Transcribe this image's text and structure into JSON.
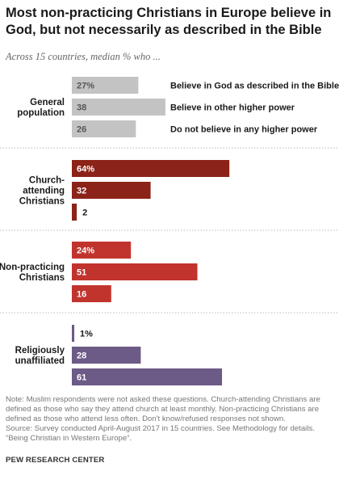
{
  "title": "Most non-practicing Christians in Europe believe in God, but not necessarily as described in the Bible",
  "subtitle": "Across 15 countries, median % who ...",
  "note": "Note: Muslim respondents were not asked these questions. Church-attending Christians are defined as those who say they attend church at least monthly. Non-practicing Christians are defined as those who attend less often. Don't know/refused responses not shown.",
  "source": "Source: Survey conducted April-August 2017 in 15 countries. See Methodology for details. “Being Christian in Western Europe”.",
  "brand": "PEW RESEARCH CENTER",
  "chart_data": {
    "type": "bar",
    "orientation": "horizontal",
    "series_labels": [
      "Believe in God as described in the Bible",
      "Believe in other higher power",
      "Do not believe in any higher power"
    ],
    "groups": [
      {
        "label": "General\npopulation",
        "color": "#c3c3c3",
        "text_color": "#555555",
        "values": [
          27,
          38,
          26
        ],
        "labels": [
          "27%",
          "38",
          "26"
        ]
      },
      {
        "label": "Church-\nattending\nChristians",
        "color": "#8c2318",
        "text_color": "#ffffff",
        "values": [
          64,
          32,
          2
        ],
        "labels": [
          "64%",
          "32",
          "2"
        ]
      },
      {
        "label": "Non-practicing\nChristians",
        "color": "#c1342d",
        "text_color": "#ffffff",
        "values": [
          24,
          51,
          16
        ],
        "labels": [
          "24%",
          "51",
          "16"
        ]
      },
      {
        "label": "Religiously\nunaffiliated",
        "color": "#6b5b86",
        "text_color": "#ffffff",
        "values": [
          1,
          28,
          61
        ],
        "labels": [
          "1%",
          "28",
          "61"
        ]
      }
    ]
  }
}
